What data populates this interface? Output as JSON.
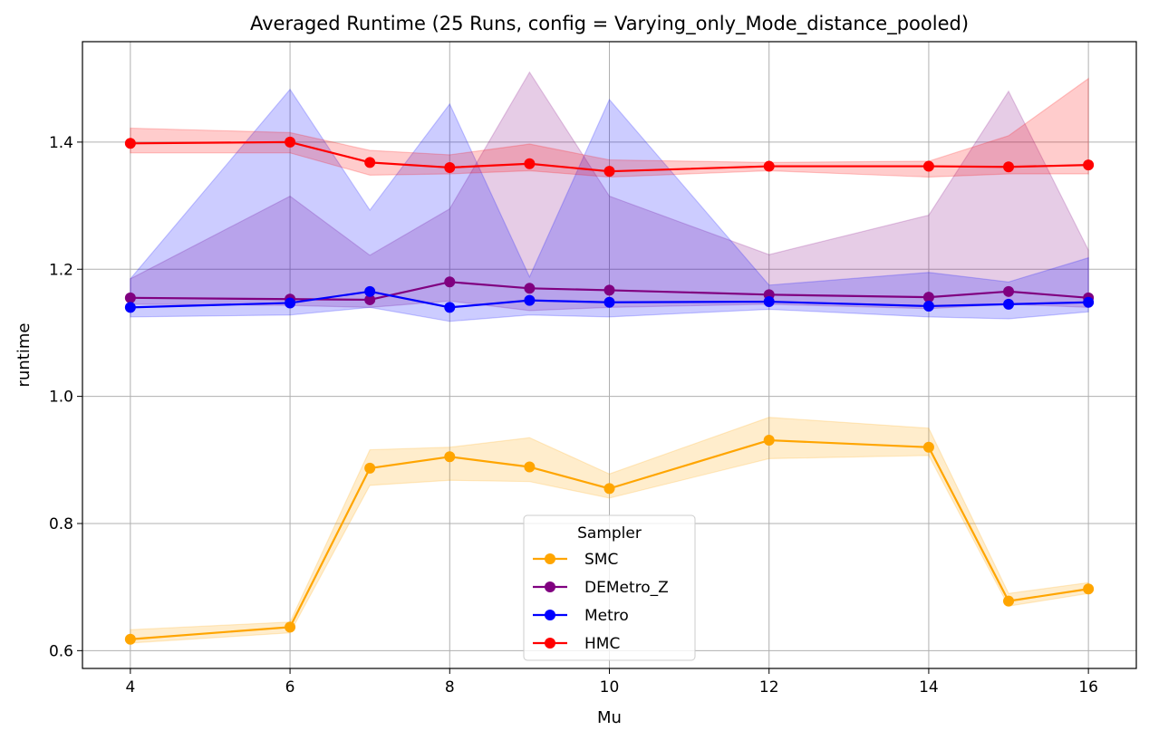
{
  "chart_data": {
    "type": "line",
    "title": "Averaged Runtime (25 Runs, config = Varying_only_Mode_distance_pooled)",
    "xlabel": "Mu",
    "ylabel": "runtime",
    "xlim": [
      3.4,
      16.6
    ],
    "ylim": [
      0.572,
      1.558
    ],
    "xticks": [
      4,
      6,
      8,
      10,
      12,
      14,
      16
    ],
    "yticks": [
      0.6,
      0.8,
      1.0,
      1.2,
      1.4
    ],
    "ytick_labels": [
      "0.6",
      "0.8",
      "1.0",
      "1.2",
      "1.4"
    ],
    "grid": true,
    "x": [
      4,
      6,
      7,
      8,
      9,
      10,
      12,
      14,
      15,
      16
    ],
    "legend": {
      "title": "Sampler",
      "position": "lower-center"
    },
    "series": [
      {
        "name": "SMC",
        "color": "#FFA500",
        "values": [
          0.618,
          0.637,
          0.887,
          0.905,
          0.889,
          0.855,
          0.931,
          0.92,
          0.678,
          0.697
        ],
        "lower": [
          0.612,
          0.628,
          0.86,
          0.868,
          0.866,
          0.84,
          0.902,
          0.907,
          0.67,
          0.69
        ],
        "upper": [
          0.633,
          0.645,
          0.916,
          0.92,
          0.935,
          0.878,
          0.967,
          0.95,
          0.69,
          0.707
        ]
      },
      {
        "name": "DEMetro_Z",
        "color": "#800080",
        "values": [
          1.155,
          1.153,
          1.152,
          1.18,
          1.17,
          1.167,
          1.16,
          1.156,
          1.165,
          1.155
        ],
        "lower": [
          1.145,
          1.143,
          1.14,
          1.15,
          1.135,
          1.14,
          1.145,
          1.138,
          1.145,
          1.14
        ],
        "upper": [
          1.185,
          1.315,
          1.222,
          1.295,
          1.51,
          1.315,
          1.223,
          1.285,
          1.48,
          1.23
        ]
      },
      {
        "name": "Metro",
        "color": "#0000FF",
        "values": [
          1.14,
          1.147,
          1.165,
          1.14,
          1.151,
          1.148,
          1.149,
          1.142,
          1.145,
          1.148
        ],
        "lower": [
          1.125,
          1.128,
          1.14,
          1.118,
          1.128,
          1.125,
          1.137,
          1.125,
          1.122,
          1.133
        ],
        "upper": [
          1.185,
          1.483,
          1.293,
          1.46,
          1.188,
          1.467,
          1.175,
          1.195,
          1.18,
          1.218
        ]
      },
      {
        "name": "HMC",
        "color": "#FF0000",
        "values": [
          1.398,
          1.4,
          1.368,
          1.36,
          1.366,
          1.354,
          1.362,
          1.362,
          1.361,
          1.364
        ],
        "lower": [
          1.383,
          1.383,
          1.348,
          1.35,
          1.355,
          1.345,
          1.355,
          1.345,
          1.35,
          1.35
        ],
        "upper": [
          1.422,
          1.415,
          1.387,
          1.38,
          1.397,
          1.372,
          1.368,
          1.37,
          1.41,
          1.5
        ]
      }
    ]
  }
}
